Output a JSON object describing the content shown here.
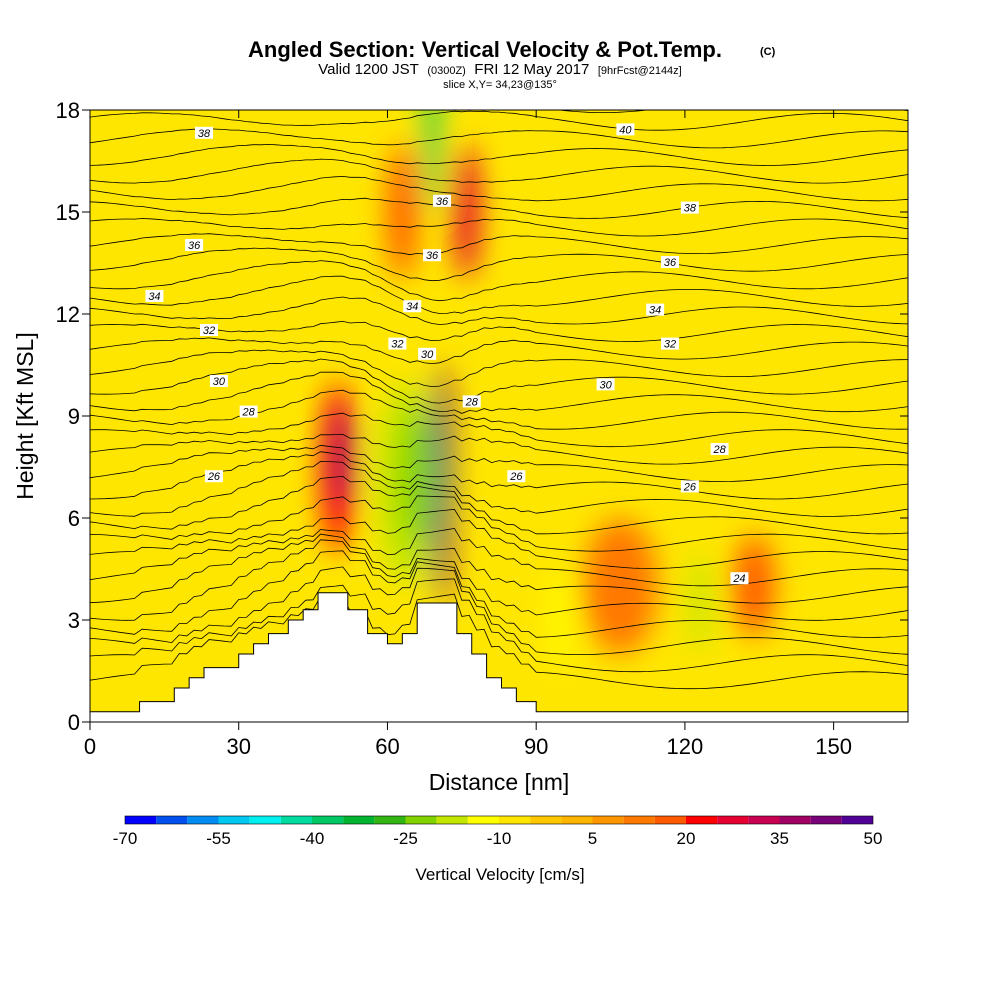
{
  "chart_data": {
    "type": "heatmap",
    "title": "Angled Section: Vertical Velocity & Pot.Temp.",
    "title_suffix": "(C)",
    "subtitle_parts": [
      "Valid 1200 JST",
      "(0300Z)",
      "FRI 12 May 2017",
      "[9hrFcst@2144z]"
    ],
    "slice_label": "slice X,Y= 34,23@135°",
    "xlabel": "Distance [nm]",
    "ylabel": "Height [Kft MSL]",
    "xlim": [
      0,
      165
    ],
    "ylim": [
      0,
      18
    ],
    "x_ticks": [
      "0",
      "30",
      "60",
      "90",
      "120",
      "150"
    ],
    "y_ticks": [
      "0",
      "3",
      "6",
      "9",
      "12",
      "15",
      "18"
    ],
    "colorbar": {
      "title": "Vertical Velocity [cm/s]",
      "min": -70,
      "step": 5,
      "labels": [
        "-70",
        "-55",
        "-40",
        "-25",
        "-10",
        "5",
        "20",
        "35",
        "50"
      ],
      "colors": [
        "#0000ff",
        "#0050f0",
        "#008cf0",
        "#00c8f0",
        "#00f0f0",
        "#00dca0",
        "#00c864",
        "#00b430",
        "#32b414",
        "#82d200",
        "#c3e600",
        "#ffff00",
        "#ffe600",
        "#ffc800",
        "#ffb400",
        "#ff9600",
        "#ff7800",
        "#ff5a00",
        "#ff0000",
        "#e60032",
        "#c80050",
        "#a00064",
        "#780078",
        "#500096"
      ]
    },
    "theta_labels": [
      {
        "text": "38",
        "x": 23,
        "y": 17.3
      },
      {
        "text": "40",
        "x": 108,
        "y": 17.4
      },
      {
        "text": "36",
        "x": 71,
        "y": 15.3
      },
      {
        "text": "38",
        "x": 121,
        "y": 15.1
      },
      {
        "text": "36",
        "x": 21,
        "y": 14.0
      },
      {
        "text": "36",
        "x": 69,
        "y": 13.7
      },
      {
        "text": "36",
        "x": 117,
        "y": 13.5
      },
      {
        "text": "34",
        "x": 13,
        "y": 12.5
      },
      {
        "text": "34",
        "x": 65,
        "y": 12.2
      },
      {
        "text": "34",
        "x": 114,
        "y": 12.1
      },
      {
        "text": "32",
        "x": 24,
        "y": 11.5
      },
      {
        "text": "32",
        "x": 62,
        "y": 11.1
      },
      {
        "text": "32",
        "x": 117,
        "y": 11.1
      },
      {
        "text": "30",
        "x": 68,
        "y": 10.8
      },
      {
        "text": "30",
        "x": 26,
        "y": 10.0
      },
      {
        "text": "30",
        "x": 104,
        "y": 9.9
      },
      {
        "text": "28",
        "x": 32,
        "y": 9.1
      },
      {
        "text": "28",
        "x": 77,
        "y": 9.4
      },
      {
        "text": "28",
        "x": 127,
        "y": 8.0
      },
      {
        "text": "26",
        "x": 25,
        "y": 7.2
      },
      {
        "text": "26",
        "x": 86,
        "y": 7.2
      },
      {
        "text": "26",
        "x": 121,
        "y": 6.9
      },
      {
        "text": "24",
        "x": 131,
        "y": 4.2
      }
    ],
    "terrain": [
      [
        0,
        0.3
      ],
      [
        10,
        0.3
      ],
      [
        10,
        0.6
      ],
      [
        17,
        0.6
      ],
      [
        17,
        1.0
      ],
      [
        20,
        1.0
      ],
      [
        20,
        1.3
      ],
      [
        23,
        1.3
      ],
      [
        23,
        1.6
      ],
      [
        30,
        1.6
      ],
      [
        30,
        2.0
      ],
      [
        33,
        2.0
      ],
      [
        33,
        2.3
      ],
      [
        36,
        2.3
      ],
      [
        36,
        2.6
      ],
      [
        40,
        2.6
      ],
      [
        40,
        3.0
      ],
      [
        43,
        3.0
      ],
      [
        43,
        3.3
      ],
      [
        46,
        3.3
      ],
      [
        46,
        3.8
      ],
      [
        52,
        3.8
      ],
      [
        52,
        3.3
      ],
      [
        56,
        3.3
      ],
      [
        56,
        2.6
      ],
      [
        60,
        2.6
      ],
      [
        60,
        2.3
      ],
      [
        63,
        2.3
      ],
      [
        63,
        2.6
      ],
      [
        66,
        2.6
      ],
      [
        66,
        3.5
      ],
      [
        74,
        3.5
      ],
      [
        74,
        2.6
      ],
      [
        77,
        2.6
      ],
      [
        77,
        2.0
      ],
      [
        80,
        2.0
      ],
      [
        80,
        1.3
      ],
      [
        83,
        1.3
      ],
      [
        83,
        1.0
      ],
      [
        86,
        1.0
      ],
      [
        86,
        0.6
      ],
      [
        90,
        0.6
      ],
      [
        90,
        0.3
      ],
      [
        165,
        0.3
      ]
    ],
    "cells": [
      {
        "x": 50,
        "y": 7.5,
        "w": 7,
        "h": 5,
        "c": 20
      },
      {
        "x": 51,
        "y": 7.8,
        "w": 4,
        "h": 3,
        "c": 35
      },
      {
        "x": 71,
        "y": 7.0,
        "w": 4,
        "h": 7,
        "c": 40
      },
      {
        "x": 71,
        "y": 7.5,
        "w": 2,
        "h": 4,
        "c": 55
      },
      {
        "x": 64,
        "y": 7.0,
        "w": 12,
        "h": 6,
        "c": -18
      },
      {
        "x": 66,
        "y": 7.2,
        "w": 7,
        "h": 4,
        "c": -25
      },
      {
        "x": 69,
        "y": 17.0,
        "w": 3,
        "h": 4,
        "c": -40
      },
      {
        "x": 76,
        "y": 15.0,
        "w": 5,
        "h": 4,
        "c": 25
      },
      {
        "x": 63,
        "y": 15.0,
        "w": 6,
        "h": 4,
        "c": 15
      },
      {
        "x": 95,
        "y": 3.0,
        "w": 4,
        "h": 3,
        "c": -15
      },
      {
        "x": 123,
        "y": 3.5,
        "w": 4,
        "h": 3,
        "c": -20
      },
      {
        "x": 134,
        "y": 4.0,
        "w": 8,
        "h": 3,
        "c": 15
      },
      {
        "x": 12,
        "y": 16.0,
        "w": 10,
        "h": 4,
        "c": -10
      },
      {
        "x": 140,
        "y": 8.0,
        "w": 6,
        "h": 3,
        "c": -8
      },
      {
        "x": 33,
        "y": 9.0,
        "w": 8,
        "h": 2,
        "c": -10
      },
      {
        "x": 107,
        "y": 4.0,
        "w": 15,
        "h": 4,
        "c": 12
      }
    ]
  }
}
